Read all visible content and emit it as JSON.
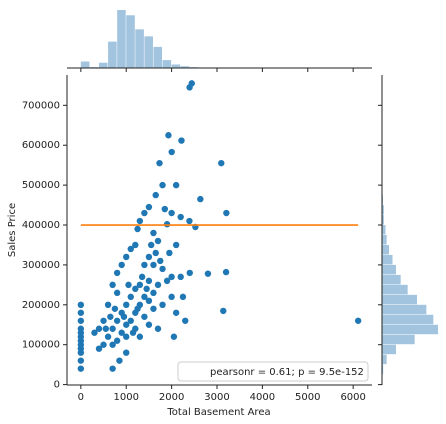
{
  "chart_data": {
    "type": "scatter",
    "xlabel": "Total Basement Area",
    "ylabel": "Sales Price",
    "xlim": [
      -305,
      6415
    ],
    "ylim": [
      -1000,
      776000
    ],
    "xticks": [
      0,
      1000,
      2000,
      3000,
      4000,
      5000,
      6000
    ],
    "yticks": [
      0,
      100000,
      200000,
      300000,
      400000,
      500000,
      600000,
      700000
    ],
    "color": "#1f77b4",
    "x": [
      6110,
      3138,
      3200,
      3206,
      3094,
      2444,
      2396,
      2633,
      2217,
      1930,
      2002,
      2524,
      2392,
      2800,
      1733,
      1800,
      2100,
      1650,
      1850,
      2000,
      2200,
      1900,
      1500,
      1400,
      1300,
      1250,
      1600,
      1700,
      2100,
      1200,
      1100,
      1000,
      900,
      800,
      700,
      1400,
      1500,
      1600,
      1800,
      2000,
      2200,
      1700,
      1500,
      1300,
      1200,
      1100,
      1000,
      900,
      800,
      700,
      600,
      500,
      400,
      1000,
      1200,
      1300,
      1400,
      1500,
      1600,
      1100,
      900,
      800,
      700,
      1000,
      1200,
      1400,
      1600,
      1800,
      2000,
      2100,
      2300,
      2050,
      1700,
      1500,
      1900,
      600,
      500,
      400,
      300,
      800,
      850,
      700,
      1000,
      1300,
      0,
      0,
      0,
      0,
      0,
      0,
      0,
      0,
      0,
      0,
      0,
      0,
      1150,
      950,
      1350,
      1450,
      1250,
      1050,
      750,
      650,
      550,
      1550,
      1650,
      1750,
      1950,
      2250,
      2400
    ],
    "y": [
      160000,
      184750,
      282000,
      430000,
      555000,
      755000,
      745000,
      465000,
      611657,
      625000,
      582933,
      395000,
      410000,
      278000,
      555000,
      500000,
      500000,
      475000,
      440000,
      430000,
      420000,
      402000,
      445000,
      430000,
      410000,
      390000,
      380000,
      360000,
      350000,
      350000,
      340000,
      320000,
      300000,
      280000,
      250000,
      300000,
      320000,
      300000,
      290000,
      270000,
      270000,
      250000,
      260000,
      250000,
      240000,
      220000,
      200000,
      180000,
      160000,
      140000,
      120000,
      100000,
      90000,
      150000,
      180000,
      200000,
      220000,
      210000,
      230000,
      160000,
      130000,
      110000,
      100000,
      120000,
      140000,
      170000,
      190000,
      200000,
      220000,
      180000,
      160000,
      120000,
      140000,
      150000,
      260000,
      200000,
      160000,
      140000,
      130000,
      230000,
      60000,
      40000,
      80000,
      120000,
      200000,
      180000,
      160000,
      140000,
      130000,
      120000,
      110000,
      100000,
      90000,
      80000,
      60000,
      40000,
      130000,
      170000,
      270000,
      240000,
      190000,
      250000,
      190000,
      170000,
      140000,
      350000,
      330000,
      310000,
      330000,
      220000,
      280000
    ],
    "line": {
      "color": "#ff7f0e",
      "x": [
        0,
        6110
      ],
      "y": [
        400000,
        400000
      ]
    },
    "legend_text": "pearsonr = 0.61; p = 9.5e-152",
    "hist_color": "#a3c4de",
    "marginal_x": {
      "bins": [
        0,
        200,
        400,
        600,
        800,
        1000,
        1200,
        1400,
        1600,
        1800,
        2000,
        2200,
        2400,
        2600,
        2800,
        3000,
        3200,
        3400,
        3600,
        3800,
        4000,
        4200,
        4400,
        4600,
        4800,
        5000,
        5200,
        5400,
        5600,
        5800,
        6000,
        6200
      ],
      "counts": [
        37,
        5,
        30,
        150,
        330,
        300,
        220,
        180,
        120,
        45,
        20,
        10,
        5,
        3,
        2,
        3,
        0,
        0,
        0,
        0,
        0,
        0,
        0,
        0,
        0,
        0,
        0,
        0,
        0,
        0,
        1
      ]
    },
    "marginal_y": {
      "bins": [
        0,
        25000,
        50000,
        75000,
        100000,
        125000,
        150000,
        175000,
        200000,
        225000,
        250000,
        275000,
        300000,
        325000,
        350000,
        375000,
        400000,
        425000,
        450000,
        475000,
        500000,
        525000,
        550000,
        575000,
        600000,
        625000,
        650000,
        675000,
        700000,
        725000,
        750000,
        775000
      ],
      "counts": [
        0,
        5,
        20,
        60,
        140,
        240,
        220,
        190,
        150,
        110,
        80,
        60,
        45,
        30,
        20,
        15,
        8,
        8,
        4,
        2,
        1,
        2,
        1,
        1,
        2,
        1,
        0,
        0,
        0,
        1,
        1
      ]
    }
  }
}
